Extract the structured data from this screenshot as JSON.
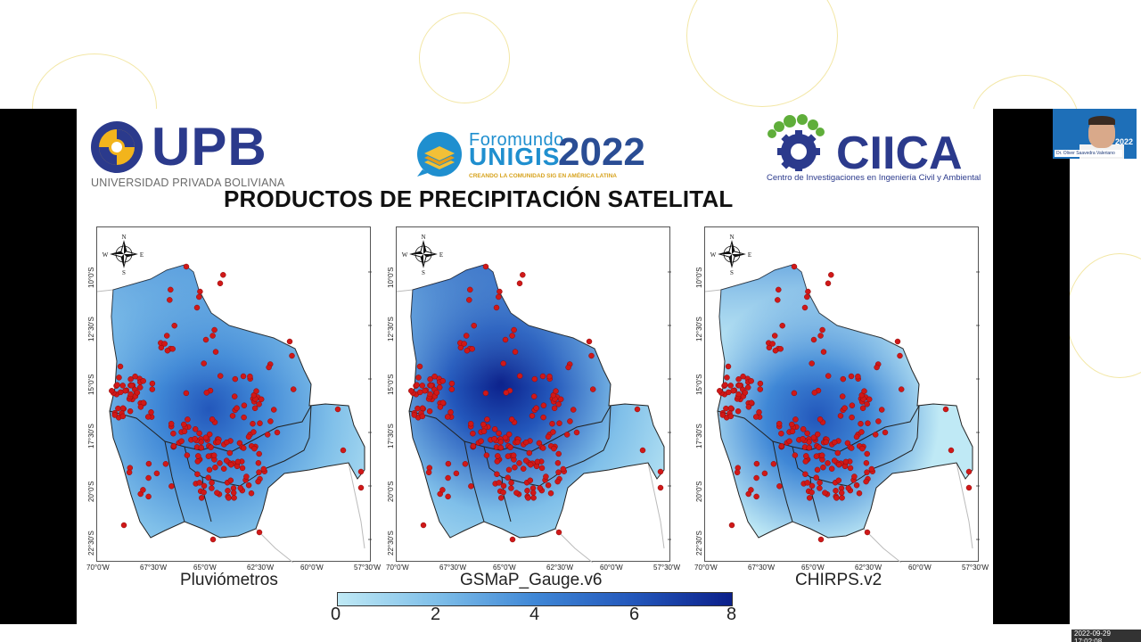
{
  "slide": {
    "title": "PRODUCTOS DE PRECIPITACIÓN SATELITAL",
    "logos": {
      "upb": {
        "name": "UPB",
        "subtitle": "UNIVERSIDAD PRIVADA BOLIVIANA"
      },
      "foro": {
        "line1": "Foromundo",
        "line2": "UNIGIS",
        "year": "2022",
        "subtitle": "CREANDO LA COMUNIDAD SIG EN AMÉRICA LATINA"
      },
      "ciica": {
        "name": "CIICA",
        "subtitle": "Centro de Investigaciones en Ingeniería Civil y Ambiental"
      }
    },
    "maps": [
      {
        "caption": "Pluviómetros"
      },
      {
        "caption": "GSMaP_Gauge.v6"
      },
      {
        "caption": "CHIRPS.v2"
      }
    ],
    "compass": {
      "n": "N",
      "s": "S",
      "e": "E",
      "w": "W"
    },
    "lat_ticks": [
      "10°0'S",
      "12°30'S",
      "15°0'S",
      "17°30'S",
      "20°0'S",
      "22°30'S"
    ],
    "lon_ticks": [
      "70°0'W",
      "67°30'W",
      "65°0'W",
      "62°30'W",
      "60°0'W",
      "57°30'W"
    ],
    "legend": {
      "ticks": [
        "0",
        "2",
        "4",
        "6",
        "8"
      ],
      "colors": [
        "#bfe9f5",
        "#7fbfe9",
        "#3f87d6",
        "#2357bb",
        "#0b1f8a"
      ]
    }
  },
  "webcam": {
    "name": "Dr. Oliver Saavedra Valeriano",
    "year": "2022"
  },
  "timestamp": "2022-09-29 17:02:08"
}
